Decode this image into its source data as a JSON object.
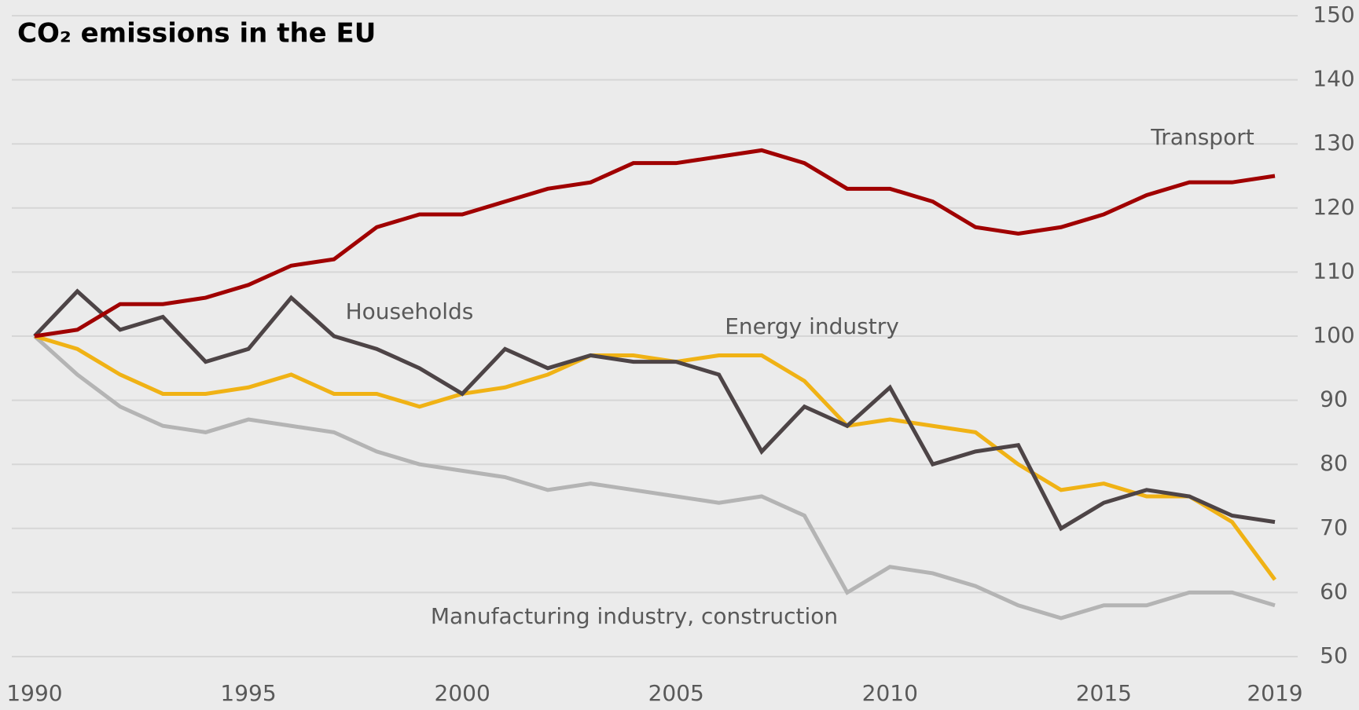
{
  "chart_data": {
    "type": "line",
    "title": "CO₂ emissions in the EU",
    "x": [
      1990,
      1991,
      1992,
      1993,
      1994,
      1995,
      1996,
      1997,
      1998,
      1999,
      2000,
      2001,
      2002,
      2003,
      2004,
      2005,
      2006,
      2007,
      2008,
      2009,
      2010,
      2011,
      2012,
      2013,
      2014,
      2015,
      2016,
      2017,
      2018,
      2019
    ],
    "series": [
      {
        "name": "Transport",
        "color": "#a00000",
        "values": [
          100,
          101,
          105,
          105,
          106,
          108,
          111,
          112,
          117,
          119,
          119,
          121,
          123,
          124,
          127,
          127,
          128,
          129,
          127,
          123,
          123,
          121,
          117,
          116,
          117,
          119,
          122,
          124,
          124,
          125
        ]
      },
      {
        "name": "Households",
        "color": "#4d4446",
        "values": [
          100,
          107,
          101,
          103,
          96,
          98,
          106,
          100,
          98,
          95,
          91,
          98,
          95,
          97,
          96,
          96,
          94,
          82,
          89,
          86,
          92,
          80,
          82,
          83,
          70,
          74,
          76,
          75,
          72,
          71
        ]
      },
      {
        "name": "Energy industry",
        "color": "#f0b215",
        "values": [
          100,
          98,
          94,
          91,
          91,
          92,
          94,
          91,
          91,
          89,
          91,
          92,
          94,
          97,
          97,
          96,
          97,
          97,
          93,
          86,
          87,
          86,
          85,
          80,
          76,
          77,
          75,
          75,
          71,
          62
        ]
      },
      {
        "name": "Manufacturing industry, construction",
        "color": "#b4b4b4",
        "values": [
          100,
          94,
          89,
          86,
          85,
          87,
          86,
          85,
          82,
          80,
          79,
          78,
          76,
          77,
          76,
          75,
          74,
          75,
          72,
          60,
          64,
          63,
          61,
          58,
          56,
          58,
          58,
          60,
          60,
          58
        ]
      }
    ],
    "xlim": [
      1990,
      2019
    ],
    "xticks": [
      1990,
      1995,
      2000,
      2005,
      2010,
      2015,
      2019
    ],
    "ylim": [
      50,
      150
    ],
    "yticks": [
      50,
      60,
      70,
      80,
      90,
      100,
      110,
      120,
      130,
      140,
      150
    ],
    "grid": true
  }
}
